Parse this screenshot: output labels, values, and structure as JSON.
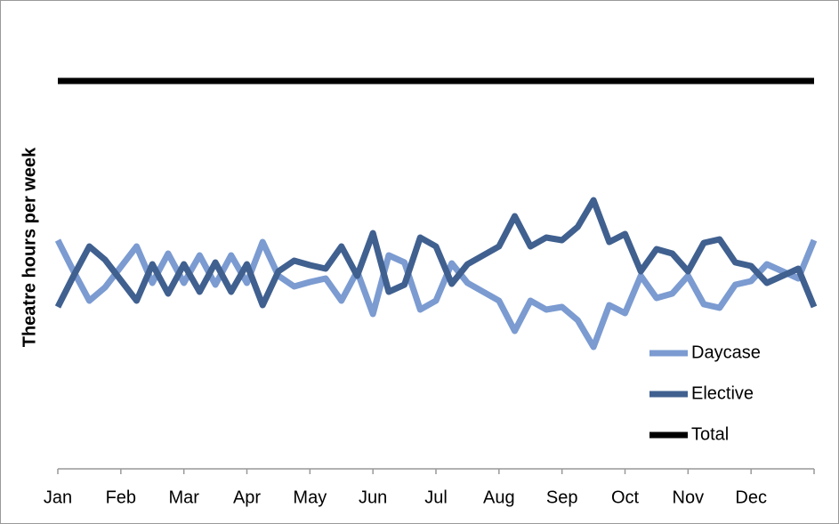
{
  "chart_data": {
    "type": "line",
    "y_label": "Theatre hours per week",
    "categories": [
      "Jan",
      null,
      null,
      null,
      "Feb",
      null,
      null,
      null,
      "Mar",
      null,
      null,
      null,
      "Apr",
      null,
      null,
      null,
      "May",
      null,
      null,
      null,
      "Jun",
      null,
      null,
      null,
      "Jul",
      null,
      null,
      null,
      "Aug",
      null,
      null,
      null,
      "Sep",
      null,
      null,
      null,
      "Oct",
      null,
      null,
      null,
      "Nov",
      null,
      null,
      null,
      "Dec",
      null,
      null,
      null,
      null
    ],
    "series": [
      {
        "name": "Daycase",
        "color": "#7b9bd1",
        "values": [
          51.4,
          44.4,
          37.8,
          40.8,
          45.4,
          50,
          41.8,
          48.4,
          41.8,
          48,
          41.4,
          48,
          41.8,
          51,
          43.4,
          41,
          42,
          42.8,
          37.8,
          44.4,
          34.8,
          48,
          46.4,
          35.8,
          37.8,
          46.2,
          41.8,
          39.8,
          37.8,
          31,
          37.8,
          35.8,
          36.4,
          33.4,
          27.4,
          36.8,
          35,
          43.4,
          38.4,
          39.4,
          43.4,
          37,
          36.2,
          41.4,
          42.2,
          46,
          44.4,
          42.8,
          51.4
        ]
      },
      {
        "name": "Elective",
        "color": "#40608f",
        "values": [
          36.4,
          43.4,
          50,
          47,
          42.4,
          37.8,
          46,
          39.4,
          46,
          39.8,
          46.4,
          39.8,
          46,
          36.8,
          44.4,
          46.8,
          45.8,
          45,
          50,
          43.4,
          53,
          39.8,
          41.4,
          52,
          50,
          41.6,
          46,
          48,
          50,
          56.8,
          50,
          52,
          51.4,
          54.4,
          60.4,
          51,
          52.8,
          44.4,
          49.4,
          48.4,
          44.4,
          50.8,
          51.6,
          46.4,
          45.6,
          41.8,
          43.4,
          45,
          36.4
        ]
      },
      {
        "name": "Total",
        "color": "#000000",
        "values": [
          87.2,
          87.2,
          87.2,
          87.2,
          87.2,
          87.2,
          87.2,
          87.2,
          87.2,
          87.2,
          87.2,
          87.2,
          87.2,
          87.2,
          87.2,
          87.2,
          87.2,
          87.2,
          87.2,
          87.2,
          87.2,
          87.2,
          87.2,
          87.2,
          87.2,
          87.2,
          87.2,
          87.2,
          87.2,
          87.2,
          87.2,
          87.2,
          87.2,
          87.2,
          87.2,
          87.2,
          87.2,
          87.2,
          87.2,
          87.2,
          87.2,
          87.2,
          87.2,
          87.2,
          87.2,
          87.2,
          87.2,
          87.2,
          87.2
        ]
      }
    ],
    "ylim": [
      0,
      100
    ],
    "legend": "right"
  }
}
